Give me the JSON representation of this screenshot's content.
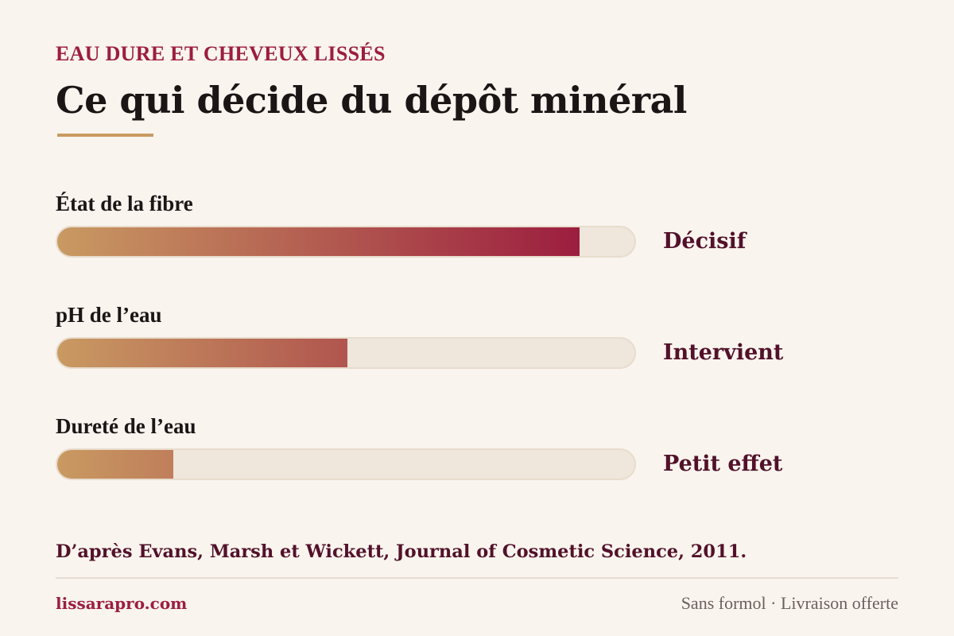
{
  "kicker": "EAU DURE ET CHEVEUX LISSÉS",
  "title": "Ce qui décide du dépôt minéral",
  "colors": {
    "background": "#f9f4ee",
    "accent": "#9c1d3f",
    "gold": "#c99a62",
    "track": "#efe6dc",
    "value_text": "#52112a"
  },
  "chart_data": {
    "type": "bar",
    "orientation": "horizontal",
    "xlim": [
      0,
      100
    ],
    "grid": false,
    "bars": [
      {
        "label": "État de la fibre",
        "value": 90,
        "value_label": "Décisif"
      },
      {
        "label": "pH de l’eau",
        "value": 50,
        "value_label": "Intervient"
      },
      {
        "label": "Dureté de l’eau",
        "value": 20,
        "value_label": "Petit effet"
      }
    ]
  },
  "source": "D’après Evans, Marsh et Wickett, Journal of Cosmetic Science, 2011.",
  "footer": {
    "site": "lissarapro.com",
    "tagline": "Sans formol · Livraison offerte"
  }
}
